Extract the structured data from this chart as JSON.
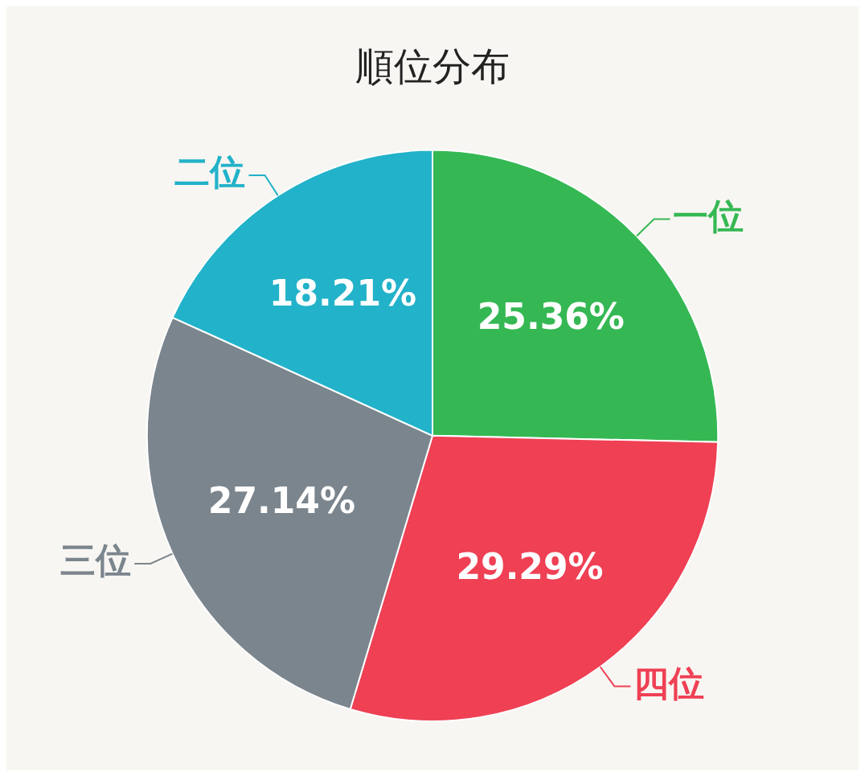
{
  "chart_data": {
    "type": "pie",
    "title": "順位分布",
    "categories": [
      "一位",
      "四位",
      "三位",
      "二位"
    ],
    "values": [
      25.36,
      29.29,
      27.14,
      18.21
    ],
    "value_labels": [
      "25.36%",
      "29.29%",
      "27.14%",
      "18.21%"
    ],
    "colors": [
      "#35b853",
      "#ef4054",
      "#7b858d",
      "#22b2c9"
    ],
    "legend": false
  }
}
